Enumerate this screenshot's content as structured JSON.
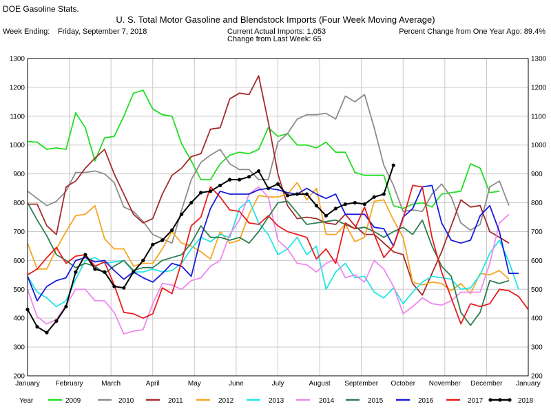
{
  "header": {
    "app_title": "DOE Gasoline Stats.",
    "chart_title": "U. S. Total Motor Gasoline and Blendstock Imports (Four Week Moving Average)",
    "week_label": "Week Ending:",
    "week_value": "Friday, September 7, 2018",
    "current_imports": "Current Actual Imports:  1,053",
    "change_week": "Change from Last Week:      65",
    "pct_change": "Percent Change from One Year Ago:  89.4%"
  },
  "legend": {
    "year_label": "Year"
  },
  "colors": {
    "2009": "#22dd22",
    "2010": "#8c8c8c",
    "2011": "#a52a2a",
    "2012": "#f5a623",
    "2013": "#22e5e5",
    "2014": "#ee88ee",
    "2015": "#2e7d4f",
    "2016": "#1a1adc",
    "2017": "#e81c1c",
    "2018": "#000000"
  },
  "chart_data": {
    "type": "line",
    "ylim": [
      200,
      1300
    ],
    "yticks": [
      200,
      300,
      400,
      500,
      600,
      700,
      800,
      900,
      1000,
      1100,
      1200,
      1300
    ],
    "xlim": [
      0,
      12
    ],
    "x_tick_labels": [
      "January",
      "February",
      "March",
      "April",
      "May",
      "June",
      "July",
      "August",
      "September",
      "October",
      "November",
      "December",
      "January"
    ],
    "grid": true,
    "legend_position": "bottom",
    "series": [
      {
        "name": "2009",
        "values": [
          1012,
          1010,
          985,
          990,
          985,
          1112,
          1060,
          945,
          1025,
          1030,
          1100,
          1180,
          1190,
          1125,
          1105,
          1100,
          1005,
          945,
          880,
          880,
          935,
          965,
          975,
          970,
          985,
          1060,
          1030,
          1040,
          1000,
          1000,
          990,
          1010,
          975,
          975,
          905,
          895,
          895,
          895,
          790,
          780,
          795,
          800,
          785,
          830,
          835,
          840,
          935,
          920,
          835,
          840
        ]
      },
      {
        "name": "2010",
        "values": [
          840,
          815,
          790,
          805,
          840,
          905,
          905,
          910,
          900,
          870,
          785,
          770,
          735,
          690,
          675,
          660,
          775,
          880,
          940,
          965,
          985,
          935,
          915,
          915,
          880,
          880,
          1010,
          1040,
          1090,
          1105,
          1105,
          1110,
          1090,
          1170,
          1150,
          1175,
          1060,
          930,
          860,
          770,
          775,
          770,
          830,
          865,
          820,
          730,
          705,
          725,
          855,
          875,
          790
        ]
      },
      {
        "name": "2011",
        "values": [
          795,
          795,
          720,
          690,
          855,
          875,
          920,
          955,
          985,
          900,
          830,
          760,
          730,
          745,
          830,
          895,
          920,
          960,
          970,
          1055,
          1060,
          1160,
          1180,
          1175,
          1240,
          1080,
          900,
          790,
          745,
          750,
          745,
          730,
          725,
          760,
          720,
          690,
          690,
          660,
          630,
          620,
          520,
          480,
          555,
          630,
          720,
          810,
          785,
          790,
          700,
          680,
          660
        ]
      },
      {
        "name": "2012",
        "values": [
          660,
          570,
          570,
          640,
          700,
          755,
          760,
          790,
          675,
          640,
          640,
          580,
          590,
          590,
          640,
          700,
          660,
          650,
          630,
          605,
          700,
          660,
          670,
          760,
          825,
          820,
          820,
          830,
          870,
          810,
          850,
          690,
          690,
          725,
          665,
          680,
          805,
          810,
          740,
          680,
          525,
          515,
          525,
          520,
          495,
          520,
          485,
          555,
          550,
          565,
          535
        ]
      },
      {
        "name": "2013",
        "values": [
          545,
          490,
          470,
          440,
          460,
          535,
          600,
          610,
          590,
          595,
          600,
          560,
          560,
          570,
          560,
          565,
          590,
          640,
          680,
          665,
          690,
          680,
          780,
          810,
          730,
          690,
          620,
          640,
          680,
          620,
          650,
          500,
          560,
          590,
          540,
          545,
          490,
          470,
          505,
          450,
          490,
          525,
          545,
          540,
          535,
          500,
          505,
          550,
          625,
          670,
          595,
          500
        ]
      },
      {
        "name": "2014",
        "values": [
          500,
          405,
          380,
          395,
          445,
          500,
          500,
          460,
          460,
          420,
          345,
          355,
          360,
          450,
          520,
          515,
          500,
          530,
          540,
          580,
          600,
          690,
          740,
          830,
          855,
          820,
          670,
          640,
          590,
          585,
          560,
          590,
          605,
          540,
          550,
          525,
          600,
          570,
          510,
          415,
          440,
          470,
          450,
          445,
          460,
          490,
          490,
          490,
          590,
          730,
          760
        ]
      },
      {
        "name": "2015",
        "values": [
          800,
          740,
          685,
          620,
          600,
          575,
          590,
          580,
          555,
          580,
          600,
          565,
          575,
          575,
          600,
          610,
          620,
          660,
          720,
          680,
          680,
          670,
          680,
          660,
          700,
          750,
          800,
          805,
          765,
          725,
          730,
          735,
          740,
          725,
          710,
          715,
          700,
          680,
          700,
          715,
          690,
          740,
          650,
          580,
          545,
          420,
          375,
          420,
          530,
          520,
          530
        ]
      },
      {
        "name": "2016",
        "values": [
          545,
          460,
          510,
          530,
          540,
          600,
          610,
          595,
          600,
          565,
          535,
          560,
          540,
          525,
          555,
          590,
          580,
          545,
          680,
          780,
          840,
          830,
          830,
          830,
          845,
          850,
          845,
          835,
          830,
          850,
          830,
          815,
          830,
          760,
          760,
          760,
          715,
          710,
          650,
          750,
          780,
          855,
          860,
          730,
          670,
          660,
          670,
          755,
          790,
          700,
          555,
          555
        ]
      },
      {
        "name": "2017",
        "values": [
          550,
          570,
          610,
          645,
          590,
          615,
          620,
          580,
          595,
          515,
          420,
          415,
          400,
          415,
          505,
          485,
          595,
          720,
          750,
          855,
          820,
          775,
          770,
          730,
          725,
          755,
          720,
          700,
          690,
          680,
          605,
          640,
          590,
          730,
          710,
          785,
          690,
          610,
          650,
          745,
          860,
          855,
          680,
          560,
          470,
          380,
          450,
          440,
          450,
          500,
          495,
          475,
          430
        ]
      },
      {
        "name": "2018",
        "values": [
          430,
          370,
          350,
          390,
          440,
          560,
          620,
          570,
          560,
          510,
          505,
          560,
          600,
          655,
          670,
          705,
          760,
          800,
          835,
          840,
          860,
          880,
          880,
          890,
          910,
          850,
          865,
          825,
          830,
          830,
          790,
          755,
          780,
          795,
          800,
          795,
          820,
          830,
          930
        ]
      }
    ]
  }
}
